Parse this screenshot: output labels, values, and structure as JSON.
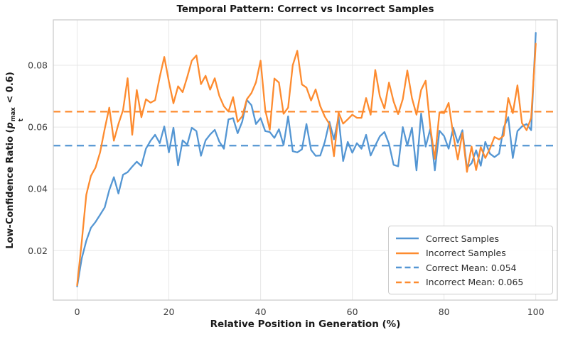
{
  "title": "Temporal Pattern: Correct vs Incorrect Samples",
  "xlabel": "Relative Position in Generation (%)",
  "ylabel": {
    "prefix": "Low-Confidence Ratio (",
    "var": "p",
    "sup": "max",
    "sub": "t",
    "suffix": " < 0.6)"
  },
  "colors": {
    "correct": "#5496d3",
    "incorrect": "#fd8b2f",
    "grid": "#e7e7e7",
    "spine": "#c9c9c9",
    "tick_text": "#3d3d3d"
  },
  "chart_data": {
    "type": "line",
    "x_positions_percent": {
      "from": 0,
      "to": 100,
      "step": 1
    },
    "series": [
      {
        "name": "Correct Samples",
        "color": "#5496d3",
        "style": "solid",
        "values": [
          0.0084,
          0.0175,
          0.0232,
          0.0274,
          0.0293,
          0.0316,
          0.034,
          0.0396,
          0.0438,
          0.0385,
          0.0446,
          0.0454,
          0.0472,
          0.0488,
          0.0474,
          0.053,
          0.0556,
          0.0575,
          0.0548,
          0.0602,
          0.0518,
          0.0598,
          0.0476,
          0.0557,
          0.0543,
          0.0598,
          0.0587,
          0.0507,
          0.0557,
          0.0576,
          0.0591,
          0.0553,
          0.053,
          0.0625,
          0.0629,
          0.058,
          0.0618,
          0.0688,
          0.0671,
          0.061,
          0.0629,
          0.0587,
          0.0584,
          0.0565,
          0.0593,
          0.0542,
          0.0635,
          0.0522,
          0.0518,
          0.0528,
          0.061,
          0.0526,
          0.0507,
          0.0508,
          0.0552,
          0.0617,
          0.056,
          0.0632,
          0.049,
          0.0552,
          0.0517,
          0.0548,
          0.053,
          0.0575,
          0.0508,
          0.054,
          0.057,
          0.0584,
          0.0546,
          0.0478,
          0.0473,
          0.06,
          0.054,
          0.0598,
          0.046,
          0.0644,
          0.0537,
          0.0594,
          0.046,
          0.0588,
          0.0571,
          0.053,
          0.0598,
          0.0549,
          0.059,
          0.0468,
          0.0483,
          0.0525,
          0.0475,
          0.0552,
          0.0514,
          0.0503,
          0.0514,
          0.0598,
          0.0632,
          0.05,
          0.0587,
          0.0602,
          0.061,
          0.059,
          0.0905
        ]
      },
      {
        "name": "Incorrect Samples",
        "color": "#fd8b2f",
        "style": "solid",
        "values": [
          0.0088,
          0.0229,
          0.0381,
          0.0442,
          0.0469,
          0.0518,
          0.0594,
          0.0663,
          0.0556,
          0.061,
          0.0655,
          0.0758,
          0.0575,
          0.072,
          0.0632,
          0.069,
          0.0679,
          0.0687,
          0.0762,
          0.0827,
          0.0747,
          0.0677,
          0.0732,
          0.0713,
          0.0762,
          0.0815,
          0.0832,
          0.0739,
          0.0766,
          0.0721,
          0.0758,
          0.0701,
          0.0667,
          0.065,
          0.0697,
          0.0617,
          0.0635,
          0.069,
          0.071,
          0.0745,
          0.0815,
          0.0656,
          0.0591,
          0.0757,
          0.0744,
          0.0643,
          0.0663,
          0.08,
          0.0847,
          0.0738,
          0.0728,
          0.0686,
          0.0722,
          0.0668,
          0.0634,
          0.061,
          0.0506,
          0.0647,
          0.0611,
          0.0625,
          0.064,
          0.063,
          0.063,
          0.0694,
          0.064,
          0.0785,
          0.07,
          0.066,
          0.0744,
          0.0683,
          0.0642,
          0.069,
          0.0783,
          0.0694,
          0.064,
          0.072,
          0.075,
          0.06,
          0.0497,
          0.0648,
          0.0645,
          0.0678,
          0.0575,
          0.0495,
          0.0581,
          0.0455,
          0.0537,
          0.0461,
          0.0535,
          0.05,
          0.053,
          0.0568,
          0.056,
          0.0572,
          0.0694,
          0.0645,
          0.0735,
          0.0613,
          0.059,
          0.063,
          0.087
        ]
      },
      {
        "name": "Correct Mean: 0.054",
        "color": "#5496d3",
        "style": "dashed",
        "mean": 0.054
      },
      {
        "name": "Incorrect Mean: 0.065",
        "color": "#fd8b2f",
        "style": "dashed",
        "mean": 0.065
      }
    ],
    "xticks": [
      0,
      20,
      40,
      60,
      80,
      100
    ],
    "yticks": [
      "0.02",
      "0.04",
      "0.06",
      "0.08"
    ],
    "xlim": [
      -5.2,
      104.7
    ],
    "ylim": [
      0.004,
      0.0947
    ],
    "grid": true,
    "legend_position": "lower right"
  }
}
